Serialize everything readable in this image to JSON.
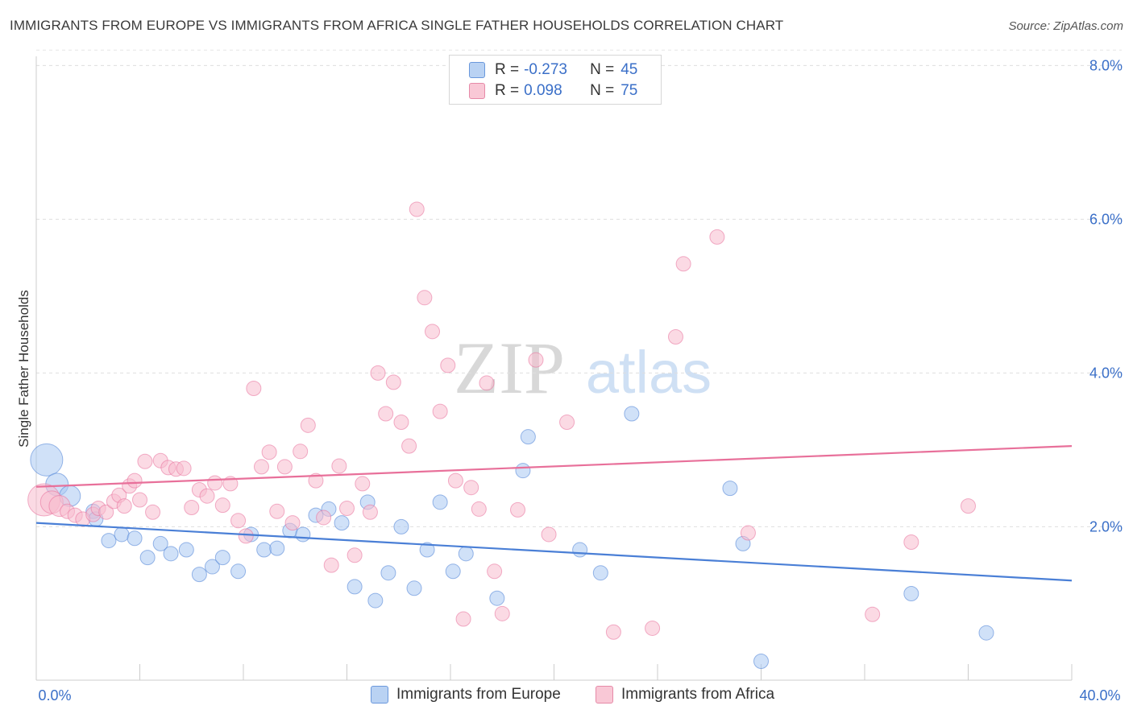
{
  "title": "IMMIGRANTS FROM EUROPE VS IMMIGRANTS FROM AFRICA SINGLE FATHER HOUSEHOLDS CORRELATION CHART",
  "source": "Source: ZipAtlas.com",
  "watermark": {
    "zip": "ZIP",
    "atlas": "atlas"
  },
  "legend_top": {
    "rows": [
      {
        "r_label": "R =",
        "r_value": "-0.273",
        "n_label": "N =",
        "n_value": "45"
      },
      {
        "r_label": "R =",
        "r_value": "0.098",
        "n_label": "N =",
        "n_value": "75"
      }
    ]
  },
  "chart_data": {
    "type": "scatter",
    "title": "IMMIGRANTS FROM EUROPE VS IMMIGRANTS FROM AFRICA SINGLE FATHER HOUSEHOLDS CORRELATION CHART",
    "xlabel": "",
    "ylabel": "Single Father Households",
    "xlim": [
      0,
      40
    ],
    "ylim": [
      0,
      8.3
    ],
    "x_tick_labels": [
      "0.0%",
      "40.0%"
    ],
    "y_ticks": [
      2,
      4,
      6,
      8
    ],
    "y_tick_labels": [
      "2.0%",
      "4.0%",
      "6.0%",
      "8.0%"
    ],
    "grid": "horizontal dashed",
    "legend": "bottom-center",
    "series": [
      {
        "name": "Immigrants from Europe",
        "color": "#4a7fd6",
        "fill": "#a9c8f2",
        "r": -0.273,
        "n": 45,
        "trend": {
          "x": [
            0,
            40
          ],
          "y": [
            2.05,
            1.3
          ]
        },
        "points": [
          [
            0.4,
            2.87
          ],
          [
            0.8,
            2.55
          ],
          [
            1.3,
            2.4
          ],
          [
            2.2,
            2.2
          ],
          [
            2.3,
            2.1
          ],
          [
            2.8,
            1.82
          ],
          [
            3.3,
            1.9
          ],
          [
            3.8,
            1.85
          ],
          [
            4.3,
            1.6
          ],
          [
            4.8,
            1.78
          ],
          [
            5.2,
            1.65
          ],
          [
            5.8,
            1.7
          ],
          [
            6.3,
            1.38
          ],
          [
            6.8,
            1.48
          ],
          [
            7.2,
            1.6
          ],
          [
            7.8,
            1.42
          ],
          [
            8.3,
            1.9
          ],
          [
            8.8,
            1.7
          ],
          [
            9.3,
            1.72
          ],
          [
            9.8,
            1.95
          ],
          [
            10.3,
            1.9
          ],
          [
            10.8,
            2.15
          ],
          [
            11.3,
            2.23
          ],
          [
            11.8,
            2.05
          ],
          [
            12.3,
            1.22
          ],
          [
            12.8,
            2.32
          ],
          [
            13.1,
            1.04
          ],
          [
            13.6,
            1.4
          ],
          [
            14.1,
            2.0
          ],
          [
            14.6,
            1.2
          ],
          [
            15.1,
            1.7
          ],
          [
            15.6,
            2.32
          ],
          [
            16.1,
            1.42
          ],
          [
            16.6,
            1.65
          ],
          [
            17.8,
            1.07
          ],
          [
            18.8,
            2.73
          ],
          [
            19.0,
            3.17
          ],
          [
            21.0,
            1.7
          ],
          [
            21.8,
            1.4
          ],
          [
            23.0,
            3.47
          ],
          [
            26.8,
            2.5
          ],
          [
            27.3,
            1.78
          ],
          [
            28.0,
            0.25
          ],
          [
            33.8,
            1.13
          ],
          [
            36.7,
            0.62
          ]
        ]
      },
      {
        "name": "Immigrants from Africa",
        "color": "#e8709a",
        "fill": "#f7bccd",
        "r": 0.098,
        "n": 75,
        "trend": {
          "x": [
            0,
            40
          ],
          "y": [
            2.52,
            3.05
          ]
        },
        "points": [
          [
            0.3,
            2.35
          ],
          [
            0.6,
            2.32
          ],
          [
            0.9,
            2.27
          ],
          [
            1.2,
            2.2
          ],
          [
            1.5,
            2.15
          ],
          [
            1.8,
            2.1
          ],
          [
            2.2,
            2.16
          ],
          [
            2.4,
            2.24
          ],
          [
            2.7,
            2.19
          ],
          [
            3.0,
            2.33
          ],
          [
            3.2,
            2.41
          ],
          [
            3.4,
            2.27
          ],
          [
            3.6,
            2.53
          ],
          [
            3.8,
            2.6
          ],
          [
            4.0,
            2.35
          ],
          [
            4.2,
            2.85
          ],
          [
            4.5,
            2.19
          ],
          [
            4.8,
            2.86
          ],
          [
            5.1,
            2.77
          ],
          [
            5.4,
            2.75
          ],
          [
            5.7,
            2.76
          ],
          [
            6.0,
            2.25
          ],
          [
            6.3,
            2.48
          ],
          [
            6.6,
            2.4
          ],
          [
            6.9,
            2.57
          ],
          [
            7.2,
            2.28
          ],
          [
            7.5,
            2.56
          ],
          [
            7.8,
            2.08
          ],
          [
            8.1,
            1.88
          ],
          [
            8.4,
            3.8
          ],
          [
            8.7,
            2.78
          ],
          [
            9.0,
            2.97
          ],
          [
            9.3,
            2.2
          ],
          [
            9.6,
            2.78
          ],
          [
            9.9,
            2.05
          ],
          [
            10.2,
            2.98
          ],
          [
            10.5,
            3.32
          ],
          [
            10.8,
            2.6
          ],
          [
            11.1,
            2.12
          ],
          [
            11.4,
            1.5
          ],
          [
            11.7,
            2.79
          ],
          [
            12.0,
            2.24
          ],
          [
            12.3,
            1.63
          ],
          [
            12.6,
            2.56
          ],
          [
            12.9,
            2.19
          ],
          [
            13.2,
            4.0
          ],
          [
            13.5,
            3.47
          ],
          [
            13.8,
            3.88
          ],
          [
            14.1,
            3.36
          ],
          [
            14.4,
            3.05
          ],
          [
            14.7,
            6.13
          ],
          [
            15.0,
            4.98
          ],
          [
            15.3,
            4.54
          ],
          [
            15.6,
            3.5
          ],
          [
            15.9,
            4.1
          ],
          [
            16.2,
            2.6
          ],
          [
            16.5,
            0.8
          ],
          [
            16.8,
            2.51
          ],
          [
            17.1,
            2.23
          ],
          [
            17.4,
            3.87
          ],
          [
            17.7,
            1.42
          ],
          [
            18.0,
            0.87
          ],
          [
            18.6,
            2.22
          ],
          [
            19.3,
            4.17
          ],
          [
            19.8,
            1.9
          ],
          [
            20.5,
            3.36
          ],
          [
            22.3,
            0.63
          ],
          [
            23.8,
            0.68
          ],
          [
            24.7,
            4.47
          ],
          [
            25.0,
            5.42
          ],
          [
            26.3,
            5.77
          ],
          [
            27.5,
            1.92
          ],
          [
            32.3,
            0.86
          ],
          [
            33.8,
            1.8
          ],
          [
            36.0,
            2.27
          ]
        ]
      }
    ]
  }
}
